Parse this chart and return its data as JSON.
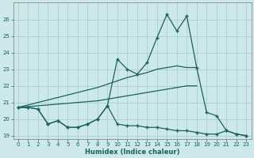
{
  "xlabel": "Humidex (Indice chaleur)",
  "background_color": "#cce8e8",
  "grid_color": "#aacece",
  "line_color": "#1a6060",
  "x": [
    0,
    1,
    2,
    3,
    4,
    5,
    6,
    7,
    8,
    9,
    10,
    11,
    12,
    13,
    14,
    15,
    16,
    17,
    18,
    19,
    20,
    21,
    22,
    23
  ],
  "main_line": [
    20.7,
    20.7,
    20.6,
    19.7,
    19.9,
    19.5,
    19.5,
    19.7,
    20.0,
    20.8,
    23.6,
    23.0,
    22.7,
    23.4,
    24.9,
    26.3,
    25.3,
    26.2,
    23.1,
    20.4,
    20.2,
    19.3,
    19.1,
    19.0
  ],
  "upper_env": [
    20.7,
    20.85,
    21.0,
    21.15,
    21.3,
    21.45,
    21.6,
    21.75,
    21.9,
    22.1,
    22.3,
    22.5,
    22.65,
    22.8,
    23.0,
    23.1,
    23.2,
    23.1,
    23.1,
    null,
    null,
    null,
    null,
    null
  ],
  "lower_env": [
    20.7,
    20.75,
    20.8,
    20.85,
    20.9,
    20.95,
    21.0,
    21.05,
    21.1,
    21.2,
    21.3,
    21.4,
    21.5,
    21.6,
    21.7,
    21.8,
    21.9,
    22.0,
    22.0,
    null,
    null,
    null,
    null,
    null
  ],
  "bottom_line": [
    20.7,
    20.7,
    20.6,
    19.7,
    19.9,
    19.5,
    19.5,
    19.7,
    20.0,
    20.8,
    19.7,
    19.6,
    19.6,
    19.5,
    19.5,
    19.4,
    19.3,
    19.3,
    19.2,
    19.1,
    19.1,
    19.3,
    19.1,
    19.0
  ],
  "ylim": [
    18.8,
    27.0
  ],
  "xlim": [
    -0.5,
    23.5
  ],
  "yticks": [
    19,
    20,
    21,
    22,
    23,
    24,
    25,
    26
  ],
  "xticks": [
    0,
    1,
    2,
    3,
    4,
    5,
    6,
    7,
    8,
    9,
    10,
    11,
    12,
    13,
    14,
    15,
    16,
    17,
    18,
    19,
    20,
    21,
    22,
    23
  ]
}
